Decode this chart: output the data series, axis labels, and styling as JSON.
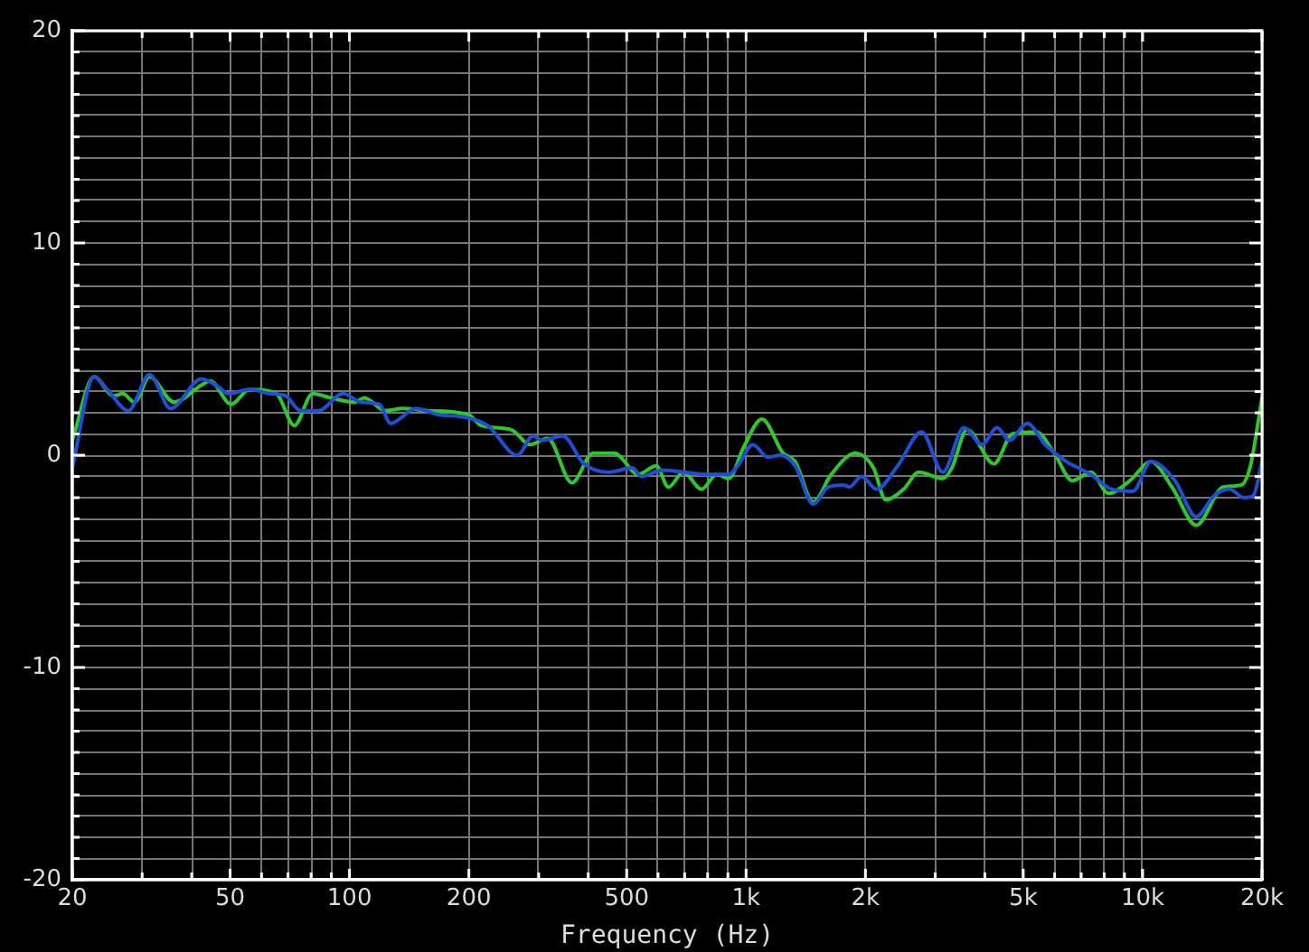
{
  "chart_data": {
    "type": "line",
    "xlabel": "Frequency (Hz)",
    "xlim": [
      20,
      20000
    ],
    "ylim": [
      -20,
      20
    ],
    "xticks": [
      20,
      {
        "value": 30,
        "label": null
      },
      {
        "value": 40,
        "label": null
      },
      50,
      {
        "value": 60,
        "label": null
      },
      {
        "value": 70,
        "label": null
      },
      {
        "value": 80,
        "label": null
      },
      {
        "value": 90,
        "label": null
      },
      100,
      200,
      {
        "value": 300,
        "label": null
      },
      {
        "value": 400,
        "label": null
      },
      500,
      {
        "value": 600,
        "label": null
      },
      {
        "value": 700,
        "label": null
      },
      {
        "value": 800,
        "label": null
      },
      {
        "value": 900,
        "label": null
      },
      {
        "value": 1000,
        "label": "1k"
      },
      {
        "value": 2000,
        "label": "2k"
      },
      {
        "value": 3000,
        "label": null
      },
      {
        "value": 4000,
        "label": null
      },
      {
        "value": 5000,
        "label": "5k"
      },
      {
        "value": 6000,
        "label": null
      },
      {
        "value": 7000,
        "label": null
      },
      {
        "value": 8000,
        "label": null
      },
      {
        "value": 9000,
        "label": null
      },
      {
        "value": 10000,
        "label": "10k"
      },
      {
        "value": 20000,
        "label": "20k"
      }
    ],
    "yticks": [
      -20,
      {
        "value": -19,
        "label": null
      },
      {
        "value": -18,
        "label": null
      },
      {
        "value": -17,
        "label": null
      },
      {
        "value": -16,
        "label": null
      },
      {
        "value": -15,
        "label": null
      },
      {
        "value": -14,
        "label": null
      },
      {
        "value": -13,
        "label": null
      },
      {
        "value": -12,
        "label": null
      },
      {
        "value": -11,
        "label": null
      },
      -10,
      {
        "value": -9,
        "label": null
      },
      {
        "value": -8,
        "label": null
      },
      {
        "value": -7,
        "label": null
      },
      {
        "value": -6,
        "label": null
      },
      {
        "value": -5,
        "label": null
      },
      {
        "value": -4,
        "label": null
      },
      {
        "value": -3,
        "label": null
      },
      {
        "value": -2,
        "label": null
      },
      {
        "value": -1,
        "label": null
      },
      0,
      {
        "value": 1,
        "label": null
      },
      {
        "value": 2,
        "label": null
      },
      {
        "value": 3,
        "label": null
      },
      {
        "value": 4,
        "label": null
      },
      {
        "value": 5,
        "label": null
      },
      {
        "value": 6,
        "label": null
      },
      {
        "value": 7,
        "label": null
      },
      {
        "value": 8,
        "label": null
      },
      {
        "value": 9,
        "label": null
      },
      10,
      {
        "value": 11,
        "label": null
      },
      {
        "value": 12,
        "label": null
      },
      {
        "value": 13,
        "label": null
      },
      {
        "value": 14,
        "label": null
      },
      {
        "value": 15,
        "label": null
      },
      {
        "value": 16,
        "label": null
      },
      {
        "value": 17,
        "label": null
      },
      {
        "value": 18,
        "label": null
      },
      {
        "value": 19,
        "label": null
      },
      20
    ],
    "log": "x",
    "grid": true,
    "marker": "none",
    "line_style": "solid",
    "series": [
      {
        "color": "#1f4fd4",
        "x": [
          20,
          22.7,
          24.5,
          27.7,
          31.3,
          35.4,
          42.3,
          46.9,
          49.5,
          55.9,
          63.2,
          68.9,
          75.3,
          83.6,
          96.2,
          107,
          119,
          127,
          147,
          168,
          194,
          223,
          265,
          290,
          306,
          345,
          390,
          449,
          517,
          545,
          615,
          695,
          786,
          904,
          953,
          1040,
          1135,
          1218,
          1330,
          1477,
          1611,
          1759,
          1822,
          1955,
          2134,
          2412,
          2773,
          3135,
          3542,
          3936,
          4297,
          4607,
          5117,
          5678,
          6427,
          6890,
          7393,
          8357,
          9448,
          10500,
          12070,
          13650,
          15160,
          16530,
          18040,
          19020,
          20000
        ],
        "values": [
          -0.6,
          3.7,
          3.1,
          2.1,
          3.8,
          2.2,
          3.6,
          3.2,
          2.9,
          3.1,
          2.9,
          2.8,
          2.1,
          2.1,
          2.9,
          2.5,
          2.4,
          1.5,
          2.2,
          1.9,
          1.8,
          1.4,
          0.0,
          0.9,
          0.7,
          0.9,
          -0.4,
          -0.8,
          -0.6,
          -1.0,
          -0.7,
          -0.8,
          -0.9,
          -0.9,
          -0.5,
          0.5,
          -0.1,
          0.0,
          -0.5,
          -2.3,
          -1.5,
          -1.4,
          -1.5,
          -1.0,
          -1.6,
          -0.5,
          1.1,
          -0.8,
          1.3,
          0.5,
          1.3,
          0.7,
          1.5,
          0.5,
          -0.3,
          -0.6,
          -0.9,
          -1.6,
          -1.7,
          -0.3,
          -1.2,
          -2.9,
          -1.9,
          -1.6,
          -2.0,
          -1.9,
          -0.3
        ]
      },
      {
        "color": "#2ec82e",
        "x": [
          20,
          22.7,
          25.4,
          26.8,
          28.7,
          31.3,
          36.1,
          42.3,
          44.5,
          50.3,
          55.9,
          65.4,
          72.6,
          80.7,
          89.7,
          103,
          109,
          123,
          136,
          157,
          200,
          215,
          256,
          285,
          316,
          364,
          411,
          465,
          535,
          594,
          637,
          695,
          772,
          843,
          904,
          987,
          1097,
          1239,
          1330,
          1477,
          1640,
          1887,
          2096,
          2250,
          2497,
          2725,
          3135,
          3304,
          3607,
          4220,
          4690,
          5392,
          5984,
          6653,
          7393,
          8208,
          9284,
          10500,
          11860,
          13650,
          15970,
          17740,
          18700,
          20000
        ],
        "values": [
          0.7,
          3.7,
          2.8,
          2.9,
          2.5,
          3.7,
          2.5,
          3.3,
          3.5,
          2.4,
          3.1,
          2.9,
          1.4,
          2.9,
          2.7,
          2.5,
          2.7,
          2.1,
          2.2,
          2.1,
          1.9,
          1.4,
          1.2,
          0.5,
          0.8,
          -1.3,
          0.1,
          0.1,
          -0.9,
          -0.5,
          -1.5,
          -0.8,
          -1.6,
          -0.9,
          -1.1,
          0.4,
          1.7,
          0.1,
          -0.3,
          -2.2,
          -0.9,
          0.1,
          -0.6,
          -2.1,
          -1.6,
          -0.8,
          -1.1,
          -0.6,
          1.2,
          -0.4,
          1.0,
          1.1,
          0.1,
          -1.2,
          -0.8,
          -1.8,
          -1.2,
          -0.3,
          -1.5,
          -3.3,
          -1.5,
          -1.4,
          -0.5,
          2.7
        ]
      }
    ]
  }
}
